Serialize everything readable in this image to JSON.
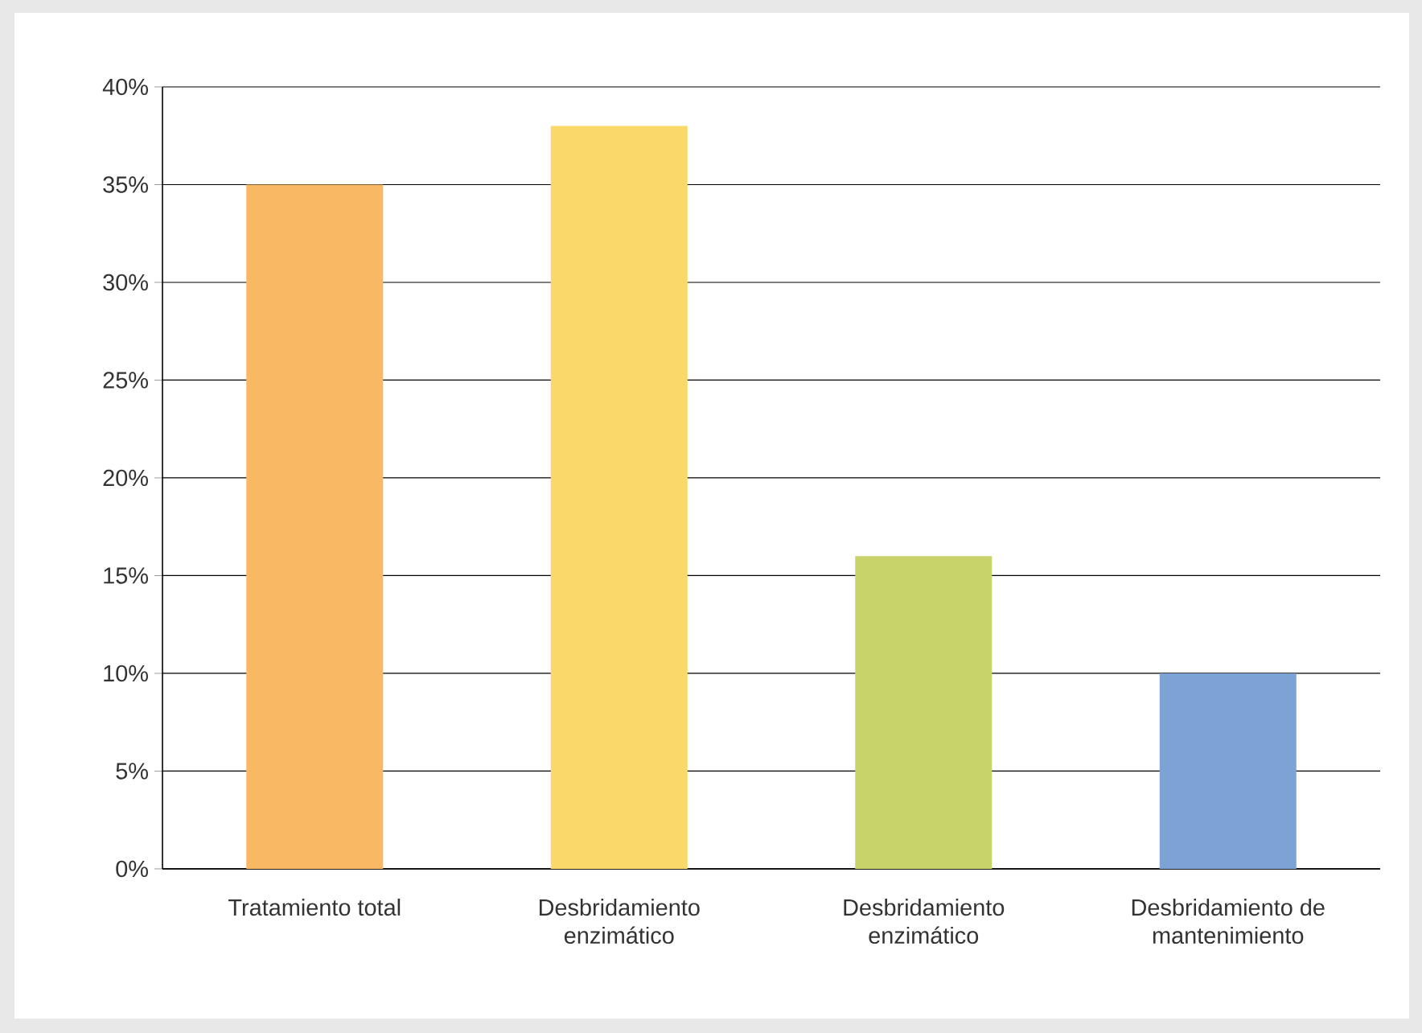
{
  "chart_data": {
    "type": "bar",
    "categories": [
      "Tratamiento total",
      "Desbridamiento enzimático",
      "Desbridamiento enzimático",
      "Desbridamiento de mantenimiento"
    ],
    "values": [
      35,
      38,
      16,
      10
    ],
    "colors": [
      "#f9b864",
      "#fad96a",
      "#c8d36a",
      "#7ca3d3"
    ],
    "ylim": [
      0,
      40
    ],
    "yticks": [
      {
        "value": 0,
        "label": "0%"
      },
      {
        "value": 5,
        "label": "5%"
      },
      {
        "value": 10,
        "label": "10%"
      },
      {
        "value": 15,
        "label": "15%"
      },
      {
        "value": 20,
        "label": "20%"
      },
      {
        "value": 25,
        "label": "25%"
      },
      {
        "value": 30,
        "label": "30%"
      },
      {
        "value": 35,
        "label": "35%"
      },
      {
        "value": 40,
        "label": "40%"
      }
    ],
    "grid": "y"
  }
}
